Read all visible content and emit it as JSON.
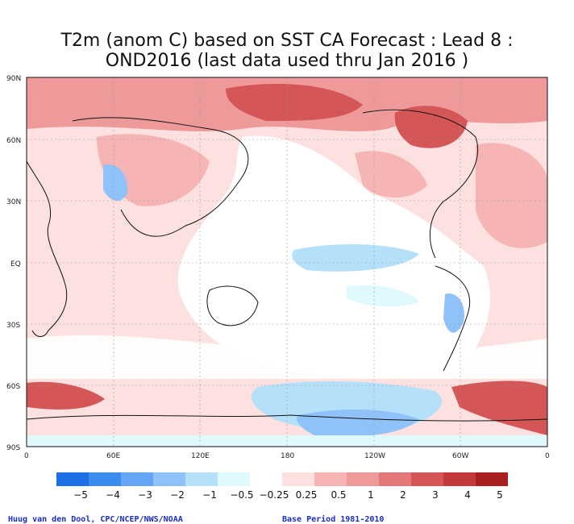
{
  "title_line1": "T2m (anom C) based on SST CA Forecast : Lead 8 :",
  "title_line2": "OND2016 (last data used thru Jan 2016 )",
  "lat_labels": [
    "90N",
    "60N",
    "30N",
    "EQ",
    "30S",
    "60S",
    "90S"
  ],
  "lon_labels": [
    "0",
    "60E",
    "120E",
    "180",
    "120W",
    "60W",
    "0"
  ],
  "legend": {
    "colors": [
      "#1e6ee6",
      "#3c8cf0",
      "#64a6f5",
      "#8ec2f8",
      "#b4e0fa",
      "#dff9ff",
      "#ffffff",
      "#fde0e0",
      "#f6b4b4",
      "#ee9a9a",
      "#e47878",
      "#d45656",
      "#c43a3a",
      "#a81f1f"
    ],
    "labels": [
      "−5",
      "−4",
      "−3",
      "−2",
      "−1",
      "−0.5",
      "−0.25",
      "0.25",
      "0.5",
      "1",
      "2",
      "3",
      "4",
      "5"
    ]
  },
  "credit_left": "Huug van den Dool, CPC/NCEP/NWS/NOAA",
  "credit_right": "Base Period 1981-2010",
  "palette": {
    "frame": "#111111",
    "grid": "#9a9a9a",
    "coast": "#111111",
    "credit": "#1a2cc9"
  }
}
